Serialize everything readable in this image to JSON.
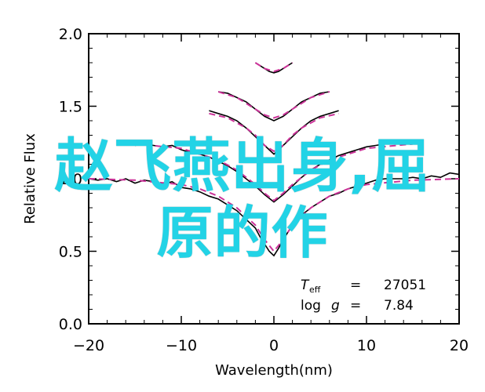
{
  "chart_data": {
    "type": "line",
    "title": "",
    "xlabel": "Wavelength(nm)",
    "ylabel": "Relative Flux",
    "xlim": [
      -20,
      20
    ],
    "ylim": [
      0.0,
      2.0
    ],
    "x_ticks": [
      -20,
      -10,
      0,
      10,
      20
    ],
    "y_ticks": [
      0.0,
      0.5,
      1.0,
      1.5,
      2.0
    ],
    "annotations": {
      "teff_label": "T",
      "teff_sub": "eff",
      "teff_eq": "=",
      "teff_value": "27051",
      "logg_label": "log ",
      "logg_g": "g",
      "logg_eq": "=",
      "logg_value": "7.84"
    },
    "series": [
      {
        "style": "solid",
        "color": "#000000",
        "segments": [
          {
            "offset": 0.0,
            "x": [
              -20,
              -19,
              -18,
              -17,
              -16,
              -15,
              -14,
              -13,
              -12,
              -11,
              -10,
              -9,
              -8,
              -7,
              -6,
              -5,
              -4,
              -3,
              -2,
              -1.5,
              -1,
              -0.5,
              0,
              0.5,
              1,
              1.5,
              2,
              3,
              4,
              5,
              6,
              7,
              8,
              9,
              10,
              11,
              12,
              13,
              14,
              15,
              16,
              17,
              18,
              19,
              20
            ],
            "y": [
              1.0,
              0.99,
              1.0,
              0.98,
              1.0,
              0.97,
              0.99,
              0.98,
              0.96,
              0.98,
              0.94,
              0.93,
              0.91,
              0.88,
              0.86,
              0.82,
              0.78,
              0.72,
              0.66,
              0.6,
              0.55,
              0.5,
              0.47,
              0.52,
              0.58,
              0.63,
              0.68,
              0.75,
              0.8,
              0.84,
              0.88,
              0.9,
              0.93,
              0.95,
              0.97,
              0.99,
              1.0,
              1.0,
              1.0,
              1.01,
              1.0,
              1.02,
              1.01,
              1.04,
              1.03
            ]
          },
          {
            "offset": 0.25,
            "x": [
              -15,
              -14,
              -13,
              -12,
              -11,
              -10,
              -9,
              -8,
              -7,
              -6,
              -5,
              -4,
              -3,
              -2,
              -1,
              0,
              1,
              2,
              3,
              4,
              5,
              6,
              7,
              8,
              9,
              10,
              11,
              12,
              13,
              14,
              15
            ],
            "y": [
              0.98,
              0.99,
              0.98,
              0.97,
              0.98,
              0.95,
              0.93,
              0.92,
              0.9,
              0.87,
              0.84,
              0.8,
              0.75,
              0.7,
              0.64,
              0.59,
              0.64,
              0.7,
              0.76,
              0.81,
              0.85,
              0.88,
              0.91,
              0.93,
              0.95,
              0.97,
              0.98,
              0.99,
              1.0,
              1.0,
              1.01
            ]
          },
          {
            "offset": 0.45,
            "x": [
              -7,
              -6,
              -5,
              -4,
              -3,
              -2,
              -1,
              0,
              1,
              2,
              3,
              4,
              5,
              6,
              7
            ],
            "y": [
              1.02,
              1.0,
              0.98,
              0.95,
              0.9,
              0.84,
              0.78,
              0.72,
              0.78,
              0.84,
              0.9,
              0.95,
              0.98,
              1.0,
              1.02
            ]
          },
          {
            "offset": 0.6,
            "x": [
              -6,
              -5,
              -4,
              -3,
              -2,
              -1,
              0,
              1,
              2,
              3,
              4,
              5,
              6
            ],
            "y": [
              1.0,
              0.99,
              0.96,
              0.93,
              0.88,
              0.83,
              0.8,
              0.83,
              0.88,
              0.93,
              0.96,
              0.99,
              1.0
            ]
          },
          {
            "offset": 0.8,
            "x": [
              -2,
              -1.5,
              -1,
              -0.5,
              0,
              0.5,
              1,
              1.5,
              2
            ],
            "y": [
              1.0,
              0.98,
              0.96,
              0.94,
              0.93,
              0.94,
              0.96,
              0.98,
              1.0
            ]
          }
        ]
      },
      {
        "style": "dashed",
        "color": "#cc3399",
        "segments": [
          {
            "offset": 0.0,
            "x": [
              -20,
              -15,
              -10,
              -8,
              -6,
              -4,
              -2,
              -1,
              0,
              1,
              2,
              4,
              6,
              8,
              10,
              15,
              20
            ],
            "y": [
              1.0,
              0.99,
              0.96,
              0.93,
              0.88,
              0.8,
              0.68,
              0.58,
              0.5,
              0.58,
              0.68,
              0.8,
              0.88,
              0.93,
              0.96,
              0.99,
              1.0
            ]
          },
          {
            "offset": 0.25,
            "x": [
              -15,
              -10,
              -8,
              -6,
              -4,
              -2,
              -1,
              0,
              1,
              2,
              4,
              6,
              8,
              10,
              15
            ],
            "y": [
              0.99,
              0.96,
              0.92,
              0.88,
              0.81,
              0.71,
              0.65,
              0.6,
              0.65,
              0.71,
              0.81,
              0.88,
              0.92,
              0.96,
              0.99
            ]
          },
          {
            "offset": 0.45,
            "x": [
              -7,
              -5,
              -3,
              -2,
              -1,
              0,
              1,
              2,
              3,
              5,
              7
            ],
            "y": [
              1.0,
              0.97,
              0.9,
              0.85,
              0.78,
              0.74,
              0.78,
              0.85,
              0.9,
              0.97,
              1.0
            ]
          },
          {
            "offset": 0.6,
            "x": [
              -6,
              -4,
              -2,
              -1,
              0,
              1,
              2,
              4,
              6
            ],
            "y": [
              1.0,
              0.96,
              0.88,
              0.84,
              0.82,
              0.84,
              0.88,
              0.96,
              1.0
            ]
          },
          {
            "offset": 0.8,
            "x": [
              -2,
              -1,
              0,
              1,
              2
            ],
            "y": [
              1.0,
              0.96,
              0.94,
              0.96,
              1.0
            ]
          }
        ]
      }
    ]
  },
  "overlay": {
    "line1": "赵飞燕出身,屈",
    "line2": "原的作",
    "color": "#22d3e6"
  }
}
